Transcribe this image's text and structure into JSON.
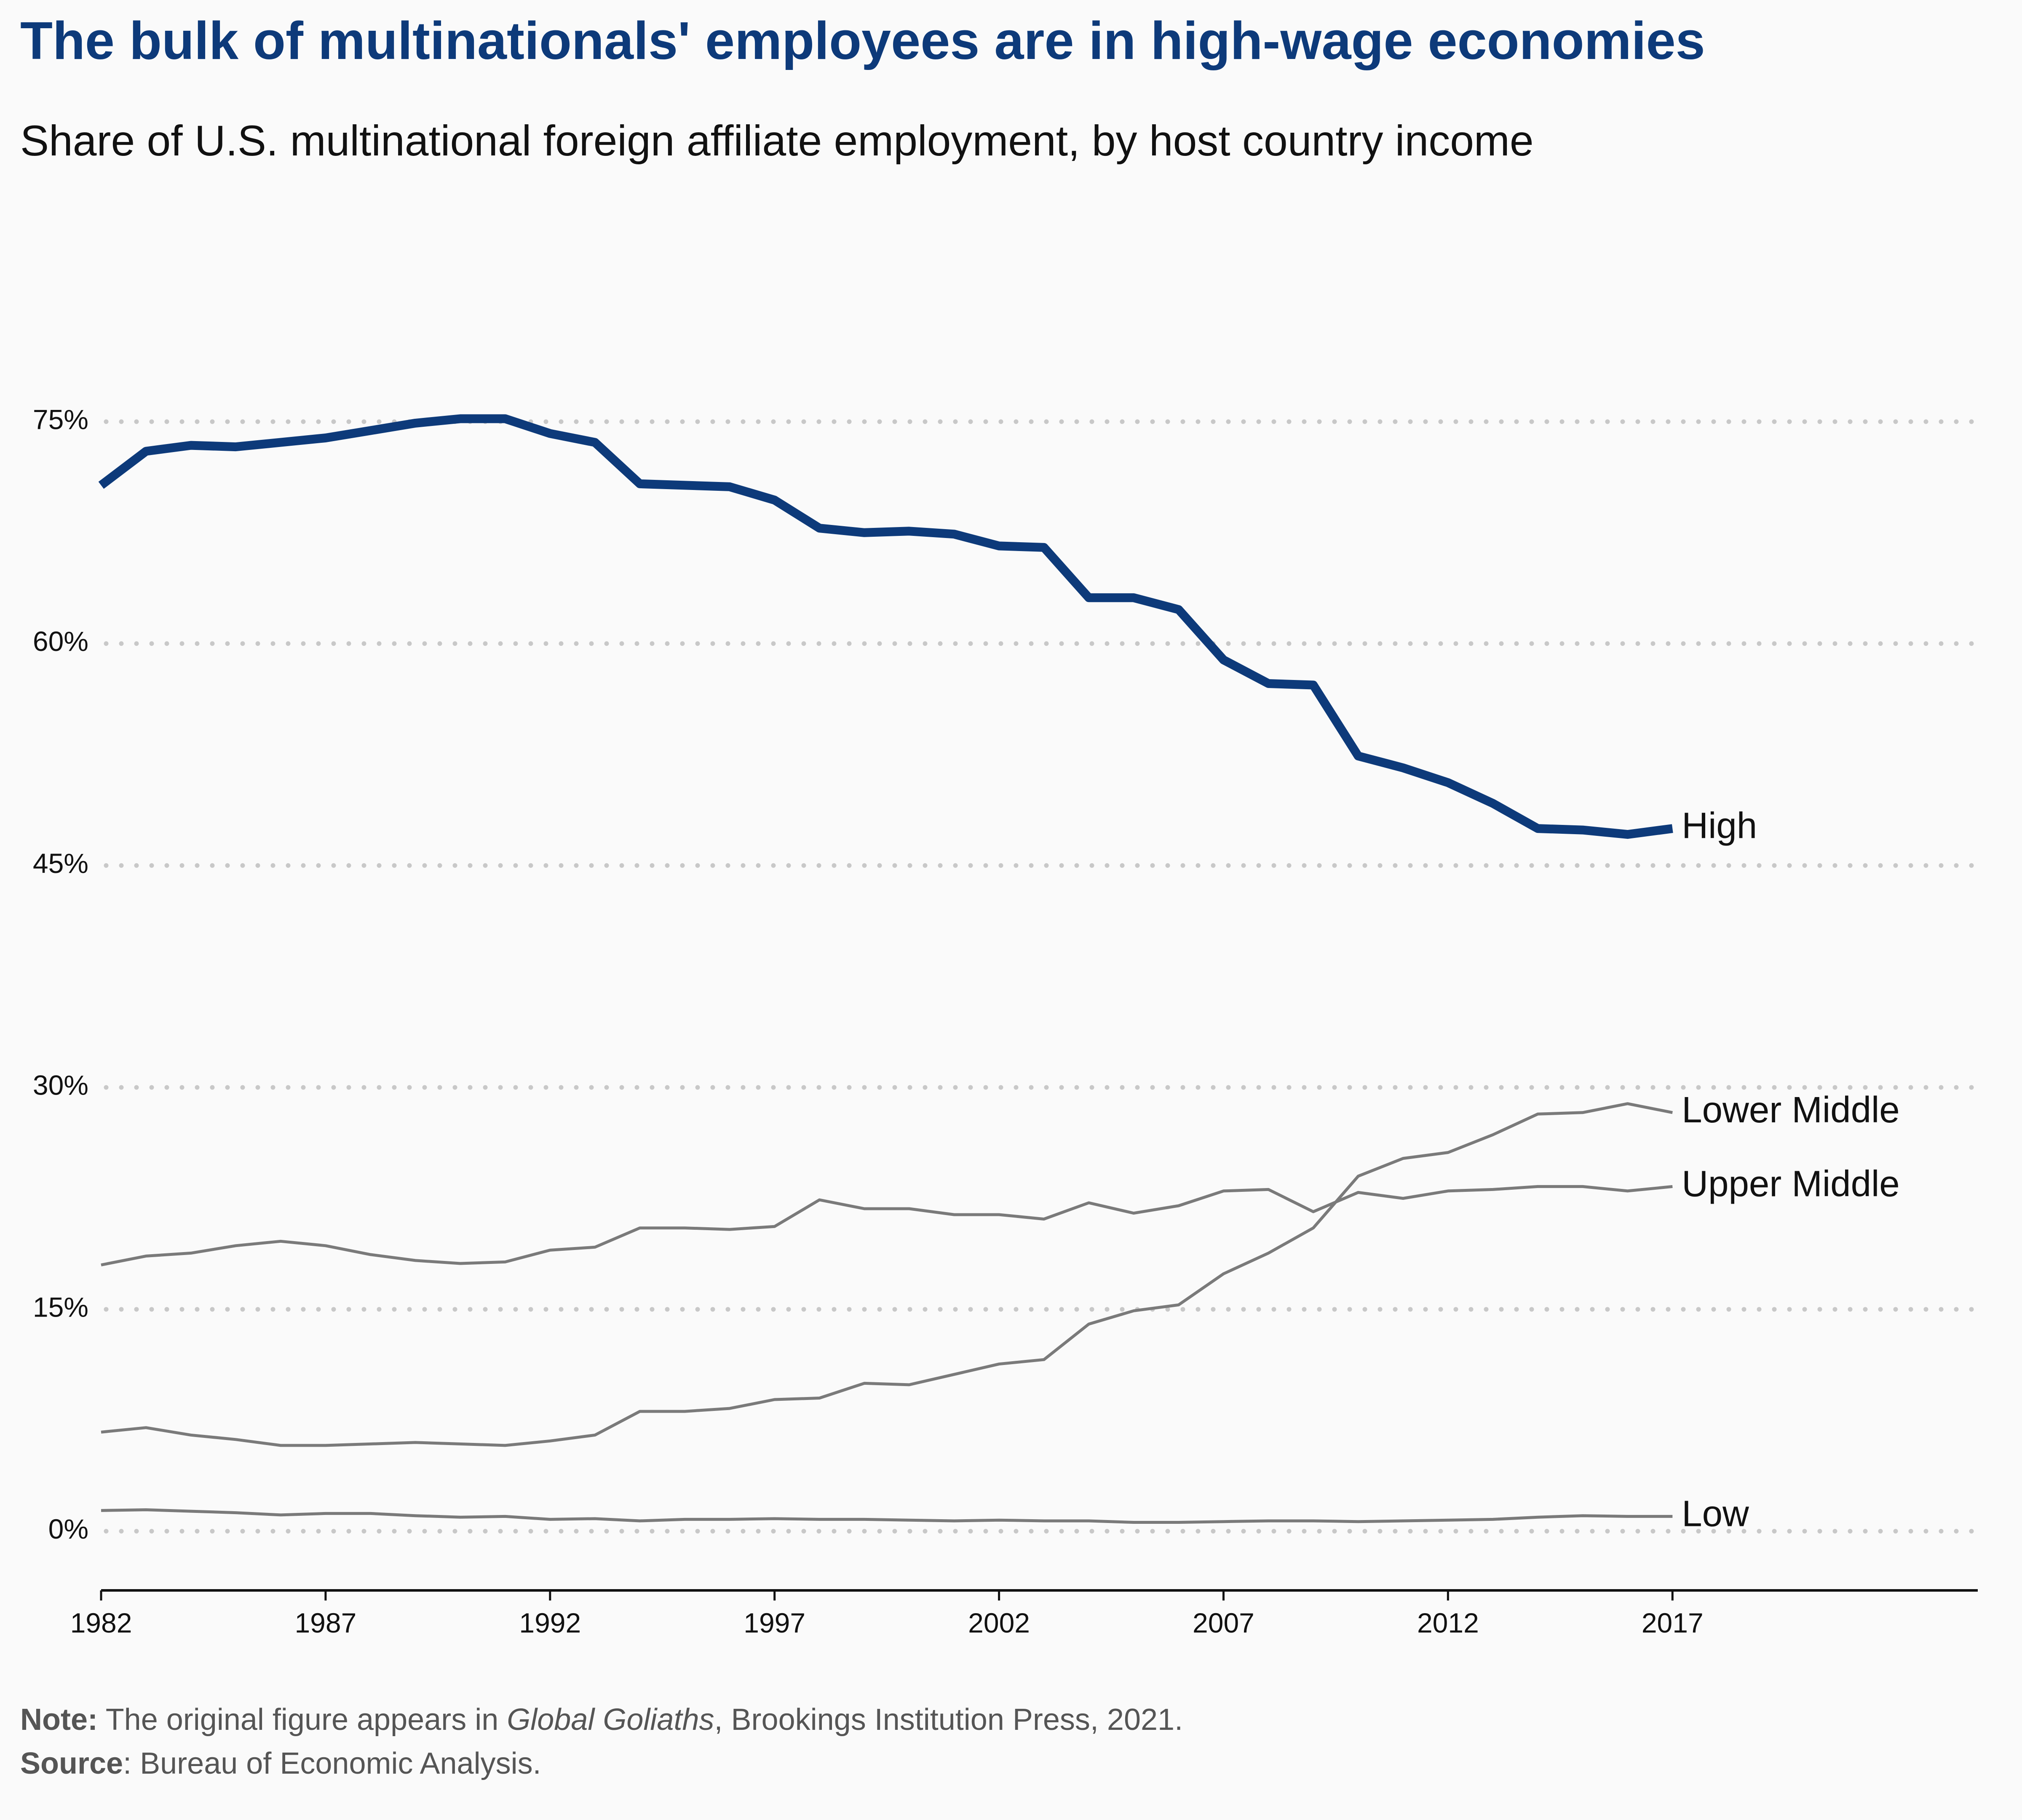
{
  "title": "The bulk of multinationals' employees are in high-wage economies",
  "subtitle": "Share of U.S. multinational foreign affiliate employment, by host country income",
  "note": {
    "label": "Note:",
    "text_before": " The original figure appears in ",
    "book": "Global Goliaths",
    "text_after": ", Brookings Institution Press, 2021."
  },
  "source": {
    "label": "Source",
    "text": ": Bureau of Economic Analysis."
  },
  "colors": {
    "high": "#0d3a7a",
    "other": "#7a7a7a",
    "grid": "#c8c8c8",
    "title": "#0d3a7a"
  },
  "chart_data": {
    "type": "line",
    "title": "The bulk of multinationals' employees are in high-wage economies",
    "subtitle": "Share of U.S. multinational foreign affiliate employment, by host country income",
    "xlabel": "",
    "ylabel": "",
    "x": [
      1982,
      1983,
      1984,
      1985,
      1986,
      1987,
      1988,
      1989,
      1990,
      1991,
      1992,
      1993,
      1994,
      1995,
      1996,
      1997,
      1998,
      1999,
      2000,
      2001,
      2002,
      2003,
      2004,
      2005,
      2006,
      2007,
      2008,
      2009,
      2010,
      2011,
      2012,
      2013,
      2014,
      2015,
      2016,
      2017
    ],
    "xlim": [
      1982,
      2023.8
    ],
    "ylim": [
      -4,
      83
    ],
    "x_ticks": [
      "1982",
      "1987",
      "1992",
      "1997",
      "2002",
      "2007",
      "2012",
      "2017"
    ],
    "y_ticks": [
      "0%",
      "15%",
      "30%",
      "45%",
      "60%",
      "75%"
    ],
    "y_tick_values": [
      0,
      15,
      30,
      45,
      60,
      75
    ],
    "grid": "horizontal dotted",
    "legend": "direct labels at line ends",
    "series": [
      {
        "name": "High",
        "values": [
          70.7,
          73.0,
          73.4,
          73.3,
          73.6,
          73.9,
          74.4,
          74.9,
          75.2,
          75.2,
          74.2,
          73.6,
          70.8,
          70.7,
          70.6,
          69.7,
          67.8,
          67.5,
          67.6,
          67.4,
          66.6,
          66.5,
          63.1,
          63.1,
          62.3,
          58.9,
          57.3,
          57.2,
          52.4,
          51.6,
          50.6,
          49.2,
          47.5,
          47.4,
          47.1,
          47.5
        ]
      },
      {
        "name": "Lower Middle",
        "values": [
          6.7,
          7.0,
          6.5,
          6.2,
          5.8,
          5.8,
          5.9,
          6.0,
          5.9,
          5.8,
          6.1,
          6.5,
          8.1,
          8.1,
          8.3,
          8.9,
          9.0,
          10.0,
          9.9,
          10.6,
          11.3,
          11.6,
          14.0,
          14.9,
          15.3,
          17.4,
          18.8,
          20.5,
          24.0,
          25.2,
          25.6,
          26.8,
          28.2,
          28.3,
          28.9,
          28.3
        ]
      },
      {
        "name": "Upper Middle",
        "values": [
          18.0,
          18.6,
          18.8,
          19.3,
          19.6,
          19.3,
          18.7,
          18.3,
          18.1,
          18.2,
          19.0,
          19.2,
          20.5,
          20.5,
          20.4,
          20.6,
          22.4,
          21.8,
          21.8,
          21.4,
          21.4,
          21.1,
          22.2,
          21.5,
          22.0,
          23.0,
          23.1,
          21.6,
          22.9,
          22.5,
          23.0,
          23.1,
          23.3,
          23.3,
          23.0,
          23.3
        ]
      },
      {
        "name": "Low",
        "values": [
          1.4,
          1.45,
          1.35,
          1.25,
          1.1,
          1.2,
          1.2,
          1.05,
          0.95,
          1.0,
          0.8,
          0.85,
          0.7,
          0.8,
          0.8,
          0.85,
          0.8,
          0.8,
          0.75,
          0.7,
          0.75,
          0.7,
          0.7,
          0.6,
          0.6,
          0.65,
          0.7,
          0.7,
          0.65,
          0.7,
          0.75,
          0.8,
          0.95,
          1.05,
          1.0,
          1.0
        ]
      }
    ]
  }
}
